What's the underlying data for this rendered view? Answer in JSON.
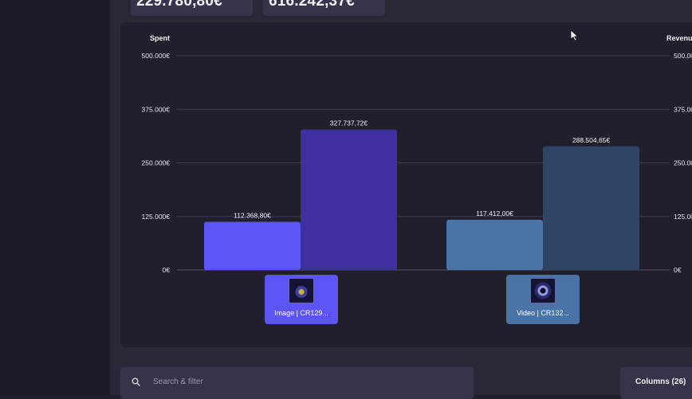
{
  "kpis": [
    {
      "value": "229.780,80€"
    },
    {
      "value": "616.242,37€"
    }
  ],
  "chart_data": {
    "type": "bar",
    "left_axis_title": "Spent",
    "right_axis_title": "Revenue",
    "categories": [
      "Image | CR129...",
      "Video | CR132..."
    ],
    "series": [
      {
        "name": "Spent",
        "values": [
          112368.8,
          117412.0
        ],
        "colors": [
          "#5d54f6",
          "#4a74a6"
        ]
      },
      {
        "name": "Revenue",
        "values": [
          327737.72,
          288504.65
        ],
        "colors": [
          "#3e309e",
          "#2e4566"
        ]
      }
    ],
    "data_labels": {
      "Spent": [
        "112.368,80€",
        "117.412,00€"
      ],
      "Revenue": [
        "327.737,72€",
        "288.504,65€"
      ]
    },
    "ylim": [
      0,
      500000
    ],
    "yticks": [
      0,
      125000,
      250000,
      375000,
      500000
    ],
    "ytick_labels": [
      "0€",
      "125.000€",
      "250.000€",
      "375.000€",
      "500.000€"
    ],
    "grid": true
  },
  "thumbnails": [
    {
      "label": "Image | CR129...",
      "bg": "#5d54f6"
    },
    {
      "label": "Video | CR132...",
      "bg": "#4a74a6"
    }
  ],
  "search": {
    "placeholder": "Search & filter",
    "icon": "search-icon"
  },
  "columns_button": {
    "label": "Columns (26)"
  }
}
